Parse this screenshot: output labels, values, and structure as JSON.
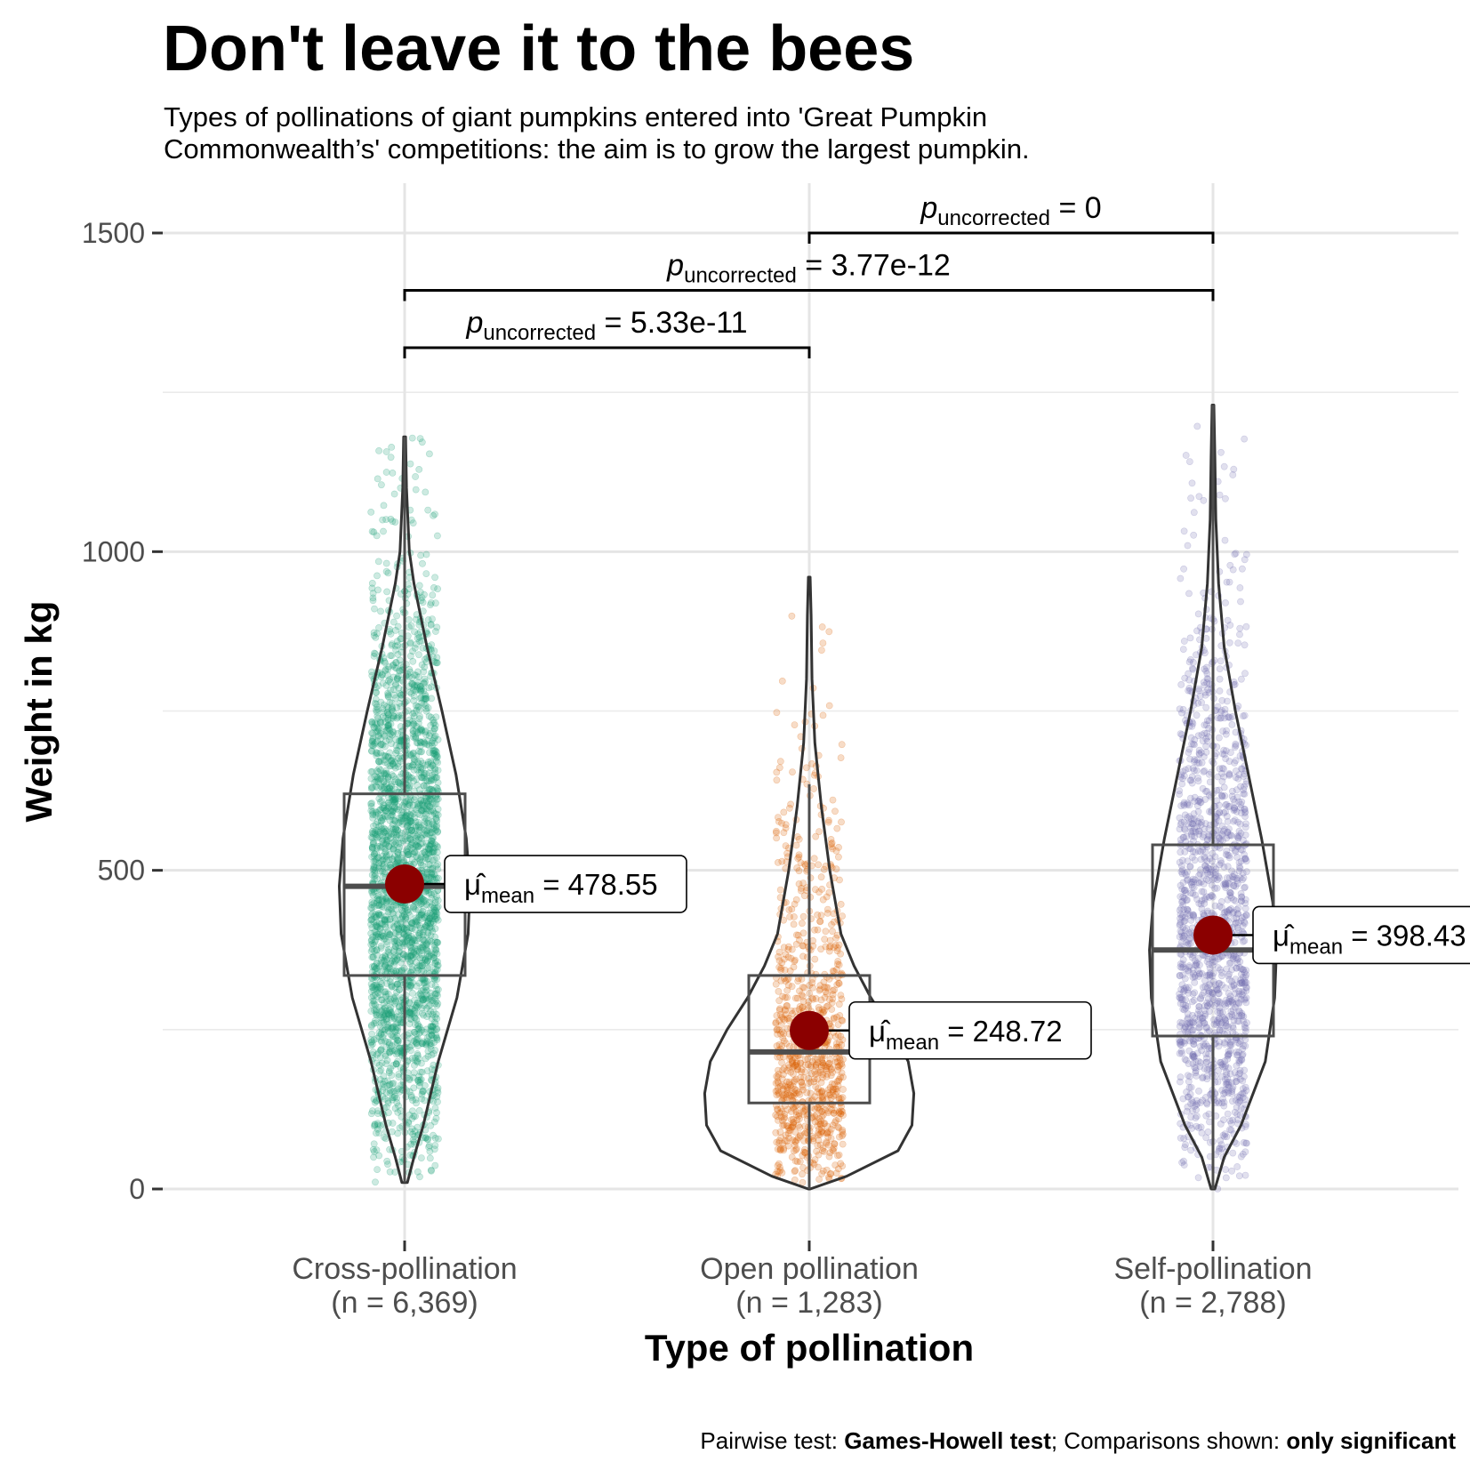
{
  "title": "Don't leave it to the bees",
  "subtitle_line1": "Types of pollinations of giant pumpkins entered into 'Great Pumpkin",
  "subtitle_line2": "Commonwealth’s' competitions: the aim is to grow the largest pumpkin.",
  "caption": {
    "prefix": "Pairwise test: ",
    "test": "Games-Howell test",
    "middle": "; Comparisons shown: ",
    "shown": "only significant"
  },
  "chart_data": {
    "type": "violin-box-scatter",
    "xlabel": "Type of pollination",
    "ylabel": "Weight in kg",
    "ylim": [
      -80,
      1600
    ],
    "yticks": [
      0,
      500,
      1000,
      1500
    ],
    "grid": true,
    "groups": [
      {
        "name": "Cross-pollination",
        "n_label": "(n = 6,369)",
        "color": "#1b9e77",
        "mean": 478.55,
        "mean_label": "478.55",
        "median": 475,
        "q1": 335,
        "q3": 620,
        "whisker_low": 10,
        "whisker_high": 1180,
        "point_min": 10,
        "point_max": 1190,
        "violin": [
          [
            10,
            3
          ],
          [
            50,
            10
          ],
          [
            100,
            20
          ],
          [
            200,
            36
          ],
          [
            300,
            56
          ],
          [
            400,
            68
          ],
          [
            475,
            70
          ],
          [
            550,
            66
          ],
          [
            650,
            55
          ],
          [
            750,
            40
          ],
          [
            850,
            24
          ],
          [
            950,
            10
          ],
          [
            1000,
            5
          ],
          [
            1100,
            2
          ],
          [
            1180,
            1
          ]
        ]
      },
      {
        "name": "Open pollination",
        "n_label": "(n = 1,283)",
        "color": "#d95f02",
        "mean": 248.72,
        "mean_label": "248.72",
        "median": 215,
        "q1": 135,
        "q3": 335,
        "whisker_low": 0,
        "whisker_high": 635,
        "point_min": 0,
        "point_max": 960,
        "violin": [
          [
            0,
            1
          ],
          [
            20,
            40
          ],
          [
            60,
            95
          ],
          [
            100,
            110
          ],
          [
            150,
            112
          ],
          [
            200,
            106
          ],
          [
            250,
            88
          ],
          [
            300,
            66
          ],
          [
            350,
            48
          ],
          [
            400,
            34
          ],
          [
            500,
            22
          ],
          [
            600,
            13
          ],
          [
            700,
            6
          ],
          [
            800,
            3
          ],
          [
            900,
            2
          ],
          [
            960,
            1
          ]
        ]
      },
      {
        "name": "Self-pollination",
        "n_label": "(n = 2,788)",
        "color": "#7570b3",
        "mean": 398.43,
        "mean_label": "398.43",
        "median": 375,
        "q1": 240,
        "q3": 540,
        "whisker_low": 0,
        "whisker_high": 1230,
        "point_min": 0,
        "point_max": 1230,
        "violin": [
          [
            0,
            2
          ],
          [
            50,
            12
          ],
          [
            100,
            30
          ],
          [
            200,
            56
          ],
          [
            300,
            66
          ],
          [
            375,
            68
          ],
          [
            450,
            64
          ],
          [
            550,
            52
          ],
          [
            650,
            38
          ],
          [
            750,
            24
          ],
          [
            850,
            12
          ],
          [
            950,
            6
          ],
          [
            1050,
            3
          ],
          [
            1150,
            2
          ],
          [
            1230,
            1
          ]
        ]
      }
    ],
    "mean_symbol": "μ̂",
    "mean_subscript": "mean",
    "pairwise": [
      {
        "from": 0,
        "to": 1,
        "p_symbol": "p",
        "p_subscript": "uncorrected",
        "p_value": "5.33e-11",
        "y": 1320
      },
      {
        "from": 0,
        "to": 2,
        "p_symbol": "p",
        "p_subscript": "uncorrected",
        "p_value": "3.77e-12",
        "y": 1410
      },
      {
        "from": 1,
        "to": 2,
        "p_symbol": "p",
        "p_subscript": "uncorrected",
        "p_value": "0",
        "y": 1500
      }
    ]
  }
}
